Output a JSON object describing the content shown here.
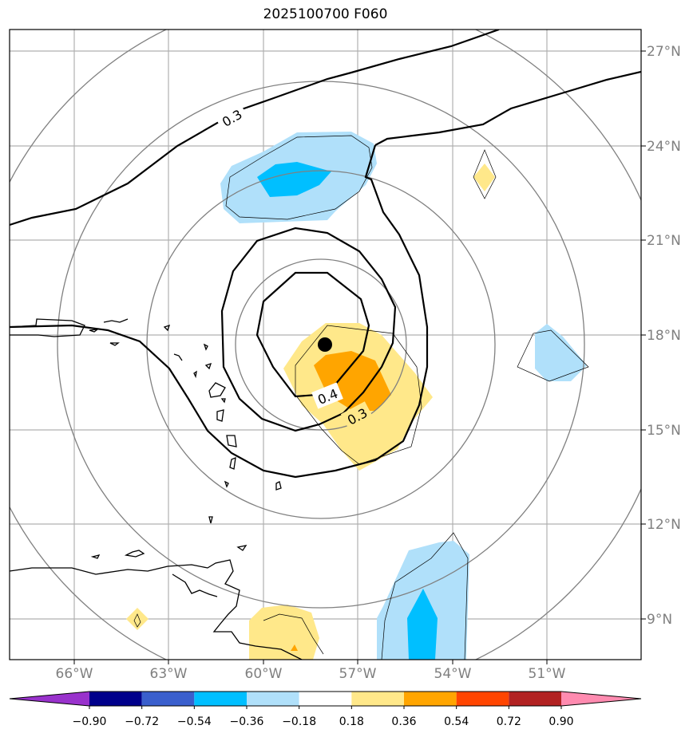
{
  "title": "2025100700 F060",
  "lon_labels": [
    "66°W",
    "63°W",
    "60°W",
    "57°W",
    "54°W",
    "51°W"
  ],
  "lat_labels": [
    "27°N",
    "24°N",
    "21°N",
    "18°N",
    "15°N",
    "12°N",
    "9°N"
  ],
  "contour_labels": [
    "0.3",
    "0.4",
    "0.3"
  ],
  "colorbar": {
    "ticks": [
      "−0.90",
      "−0.72",
      "−0.54",
      "−0.36",
      "−0.18",
      "0.18",
      "0.36",
      "0.54",
      "0.72",
      "0.90"
    ],
    "colors": [
      "#9932cc",
      "#00008b",
      "#3a5fcd",
      "#00bfff",
      "#b0e0fa",
      "#ffffff",
      "#ffe88a",
      "#ffa500",
      "#ff4500",
      "#b22222",
      "#ff8bb0"
    ]
  },
  "colors": {
    "grid": "#b0b0b0",
    "range_ring": "#808080",
    "coast": "#000000",
    "center_marker": "#000000"
  }
}
